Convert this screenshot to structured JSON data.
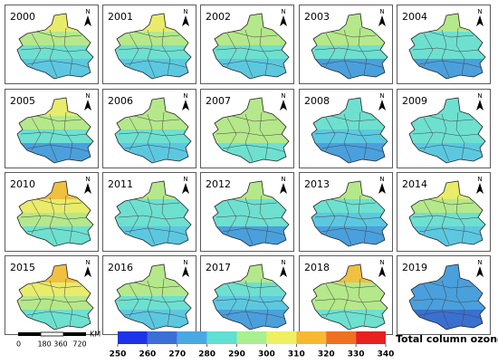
{
  "panels": [
    {
      "year": "2000",
      "bands": [
        "#e8ec6a",
        "#b5e88a",
        "#6ee0d0",
        "#5cc8e0"
      ]
    },
    {
      "year": "2001",
      "bands": [
        "#e8ec6a",
        "#b5e88a",
        "#6ee0d0",
        "#5cc8e0"
      ]
    },
    {
      "year": "2002",
      "bands": [
        "#b5e88a",
        "#b5e88a",
        "#6ee0d0",
        "#5cc8e0"
      ]
    },
    {
      "year": "2003",
      "bands": [
        "#b5e88a",
        "#b5e88a",
        "#6ee0d0",
        "#4aa0dc"
      ]
    },
    {
      "year": "2004",
      "bands": [
        "#b5e88a",
        "#6ee0d0",
        "#6ee0d0",
        "#4aa0dc"
      ]
    },
    {
      "year": "2005",
      "bands": [
        "#e8ec6a",
        "#b5e88a",
        "#6ee0d0",
        "#4aa0dc"
      ]
    },
    {
      "year": "2006",
      "bands": [
        "#b5e88a",
        "#b5e88a",
        "#6ee0d0",
        "#5cc8e0"
      ]
    },
    {
      "year": "2007",
      "bands": [
        "#b5e88a",
        "#b5e88a",
        "#b5e88a",
        "#6ee0d0"
      ]
    },
    {
      "year": "2008",
      "bands": [
        "#6ee0d0",
        "#6ee0d0",
        "#5cc8e0",
        "#4aa0dc"
      ]
    },
    {
      "year": "2009",
      "bands": [
        "#6ee0d0",
        "#6ee0d0",
        "#6ee0d0",
        "#5cc8e0"
      ]
    },
    {
      "year": "2010",
      "bands": [
        "#f0c040",
        "#e8ec6a",
        "#b5e88a",
        "#6ee0d0"
      ]
    },
    {
      "year": "2011",
      "bands": [
        "#b5e88a",
        "#6ee0d0",
        "#6ee0d0",
        "#5cc8e0"
      ]
    },
    {
      "year": "2012",
      "bands": [
        "#b5e88a",
        "#6ee0d0",
        "#6ee0d0",
        "#4aa0dc"
      ]
    },
    {
      "year": "2013",
      "bands": [
        "#b5e88a",
        "#6ee0d0",
        "#5cc8e0",
        "#4aa0dc"
      ]
    },
    {
      "year": "2014",
      "bands": [
        "#e8ec6a",
        "#b5e88a",
        "#6ee0d0",
        "#5cc8e0"
      ]
    },
    {
      "year": "2015",
      "bands": [
        "#f0c040",
        "#e8ec6a",
        "#b5e88a",
        "#6ee0d0"
      ]
    },
    {
      "year": "2016",
      "bands": [
        "#b5e88a",
        "#b5e88a",
        "#6ee0d0",
        "#5cc8e0"
      ]
    },
    {
      "year": "2017",
      "bands": [
        "#b5e88a",
        "#6ee0d0",
        "#5cc8e0",
        "#4aa0dc"
      ]
    },
    {
      "year": "2018",
      "bands": [
        "#f0c040",
        "#b5e88a",
        "#b5e88a",
        "#6ee0d0"
      ]
    },
    {
      "year": "2019",
      "bands": [
        "#4aa0dc",
        "#4aa0dc",
        "#4aa0dc",
        "#3a70d0"
      ]
    }
  ],
  "north": "N",
  "scale_bar": {
    "unit": "KM",
    "labels": [
      "0",
      "180 360",
      "720"
    ]
  },
  "legend": {
    "title": "Total column ozone/DU",
    "lim": [
      250,
      340
    ],
    "ticks": [
      250,
      260,
      270,
      280,
      290,
      300,
      310,
      320,
      330,
      340
    ],
    "colors": [
      "#1e32e8",
      "#3c6ed8",
      "#48a8e4",
      "#5ee0d2",
      "#a8f090",
      "#eef060",
      "#f8b830",
      "#f07020",
      "#e82020"
    ]
  }
}
